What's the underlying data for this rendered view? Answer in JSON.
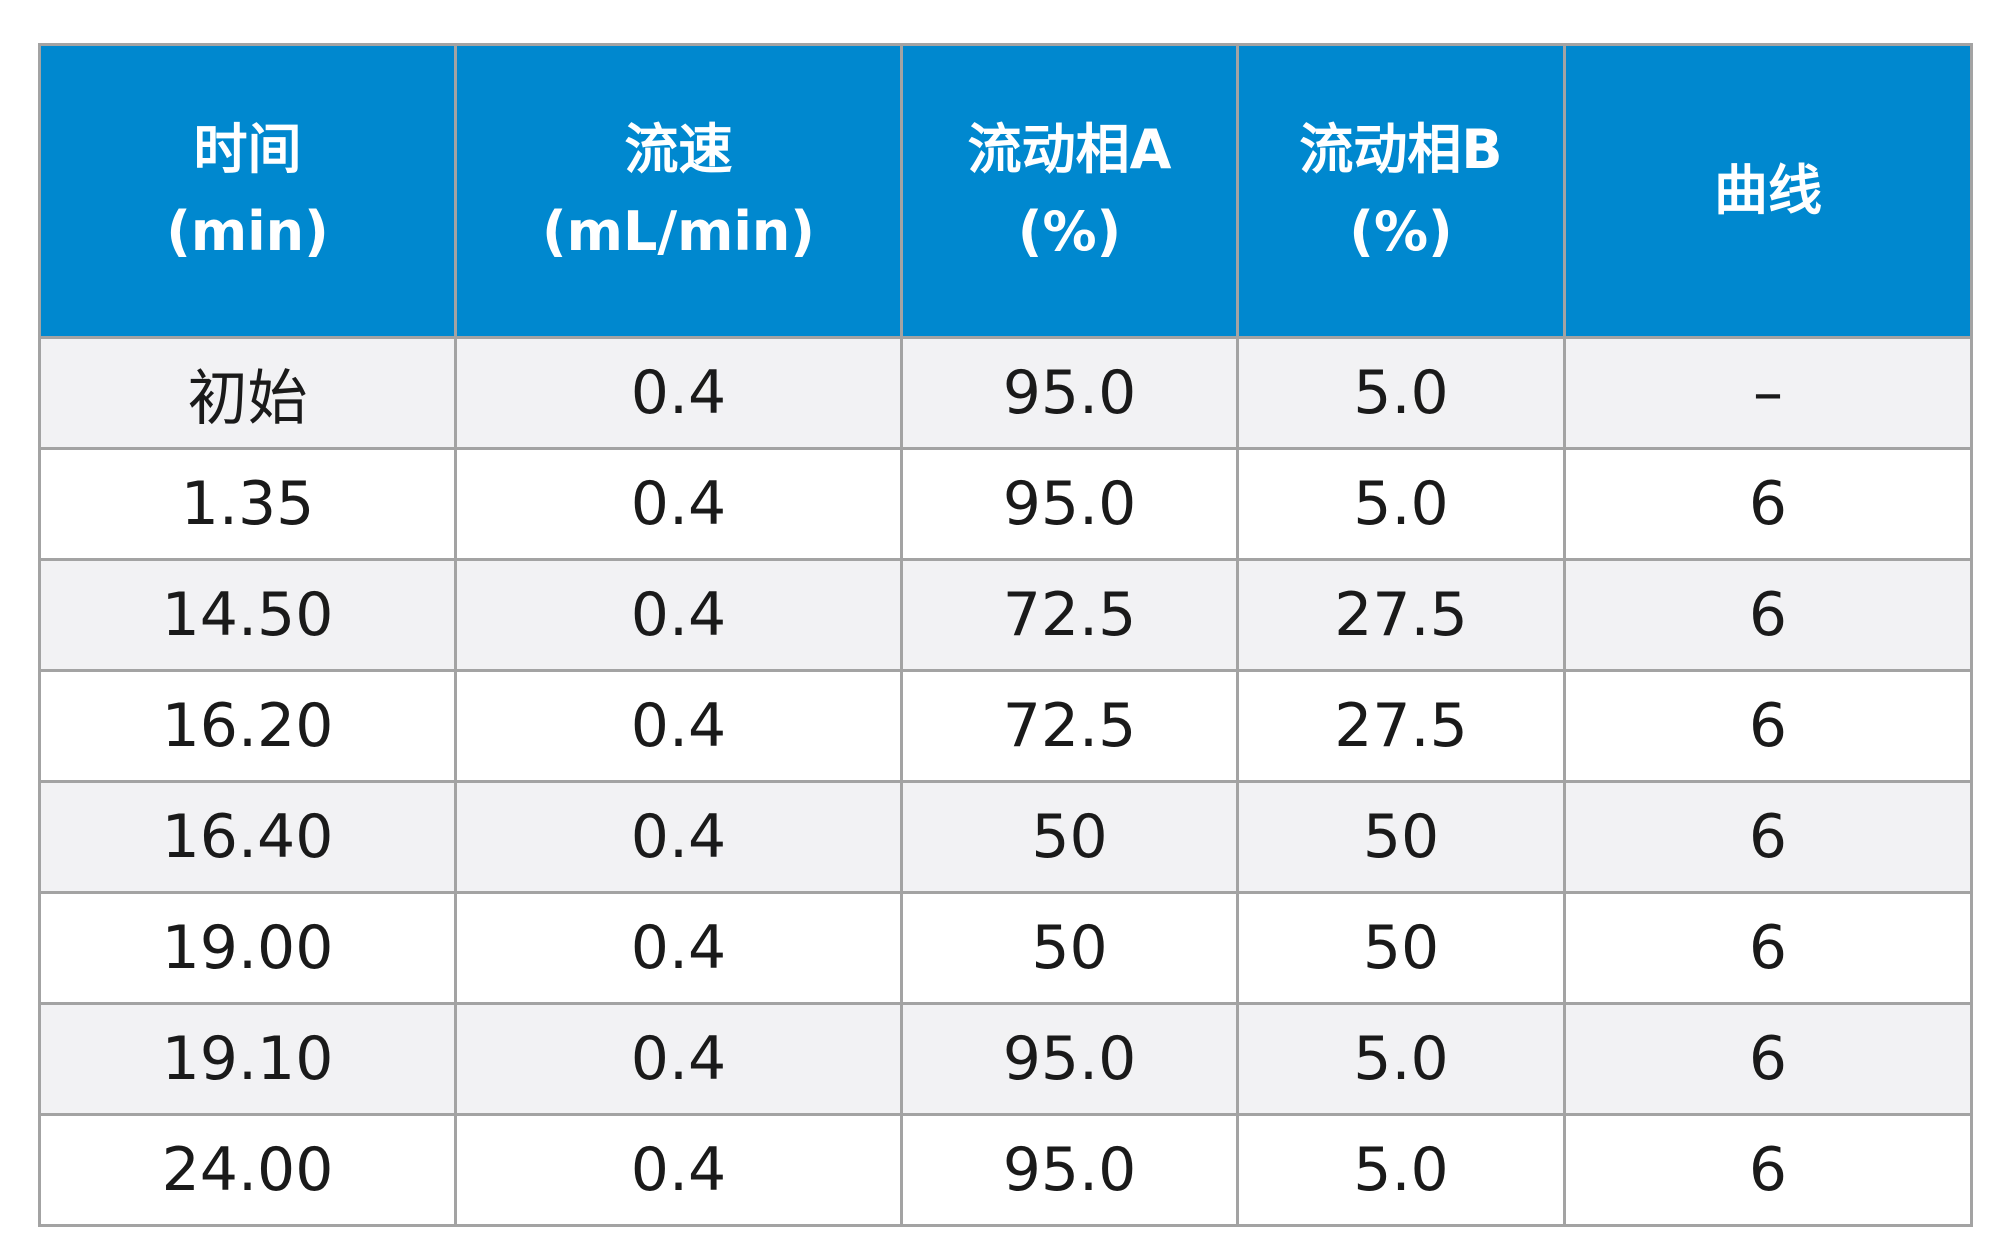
{
  "table": {
    "headers": [
      {
        "line1": "时间",
        "line2": "(min)"
      },
      {
        "line1": "流速",
        "line2": "(mL/min)"
      },
      {
        "line1": "流动相A",
        "line2": "(%)"
      },
      {
        "line1": "流动相B",
        "line2": "(%)"
      },
      {
        "line1": "曲线",
        "line2": ""
      }
    ],
    "rows": [
      [
        "初始",
        "0.4",
        "95.0",
        "5.0",
        "–"
      ],
      [
        "1.35",
        "0.4",
        "95.0",
        "5.0",
        "6"
      ],
      [
        "14.50",
        "0.4",
        "72.5",
        "27.5",
        "6"
      ],
      [
        "16.20",
        "0.4",
        "72.5",
        "27.5",
        "6"
      ],
      [
        "16.40",
        "0.4",
        "50",
        "50",
        "6"
      ],
      [
        "19.00",
        "0.4",
        "50",
        "50",
        "6"
      ],
      [
        "19.10",
        "0.4",
        "95.0",
        "5.0",
        "6"
      ],
      [
        "24.00",
        "0.4",
        "95.0",
        "5.0",
        "6"
      ]
    ]
  },
  "colors": {
    "header_bg": "#0088cf",
    "header_text": "#ffffff",
    "row_alt_bg": "#f2f2f4",
    "border": "#a3a3a3"
  }
}
